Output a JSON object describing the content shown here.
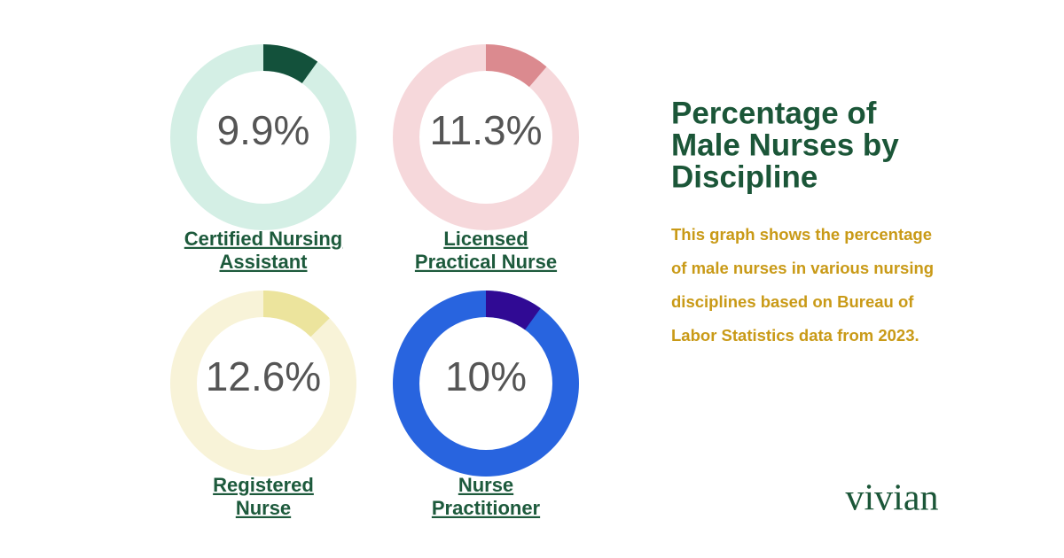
{
  "title": [
    "Percentage of",
    "Male Nurses by",
    "Discipline"
  ],
  "description": [
    "This graph shows the percentage",
    "of male nurses in various nursing",
    "disciplines based on Bureau of",
    "Labor Statistics data from 2023."
  ],
  "brand": "vivian",
  "chart_data": [
    {
      "type": "donut",
      "title": [
        "Certified Nursing",
        "Assistant"
      ],
      "values": [
        9.9
      ],
      "value_labels": [
        "9.9%"
      ],
      "ylim": [
        0,
        100
      ],
      "color": "#13513b",
      "track_color": "#d4efe5"
    },
    {
      "type": "donut",
      "title": [
        "Licensed",
        "Practical Nurse"
      ],
      "values": [
        11.3
      ],
      "value_labels": [
        "11.3%"
      ],
      "ylim": [
        0,
        100
      ],
      "color": "#db8a8f",
      "track_color": "#f6d8db"
    },
    {
      "type": "donut",
      "title": [
        "Registered",
        "Nurse"
      ],
      "values": [
        12.6
      ],
      "value_labels": [
        "12.6%"
      ],
      "ylim": [
        0,
        100
      ],
      "color": "#ece49d",
      "track_color": "#f8f3d8"
    },
    {
      "type": "donut",
      "title": [
        "Nurse",
        "Practitioner"
      ],
      "values": [
        10
      ],
      "value_labels": [
        "10%"
      ],
      "ylim": [
        0,
        100
      ],
      "color": "#300a94",
      "track_color": "#2864df"
    }
  ]
}
